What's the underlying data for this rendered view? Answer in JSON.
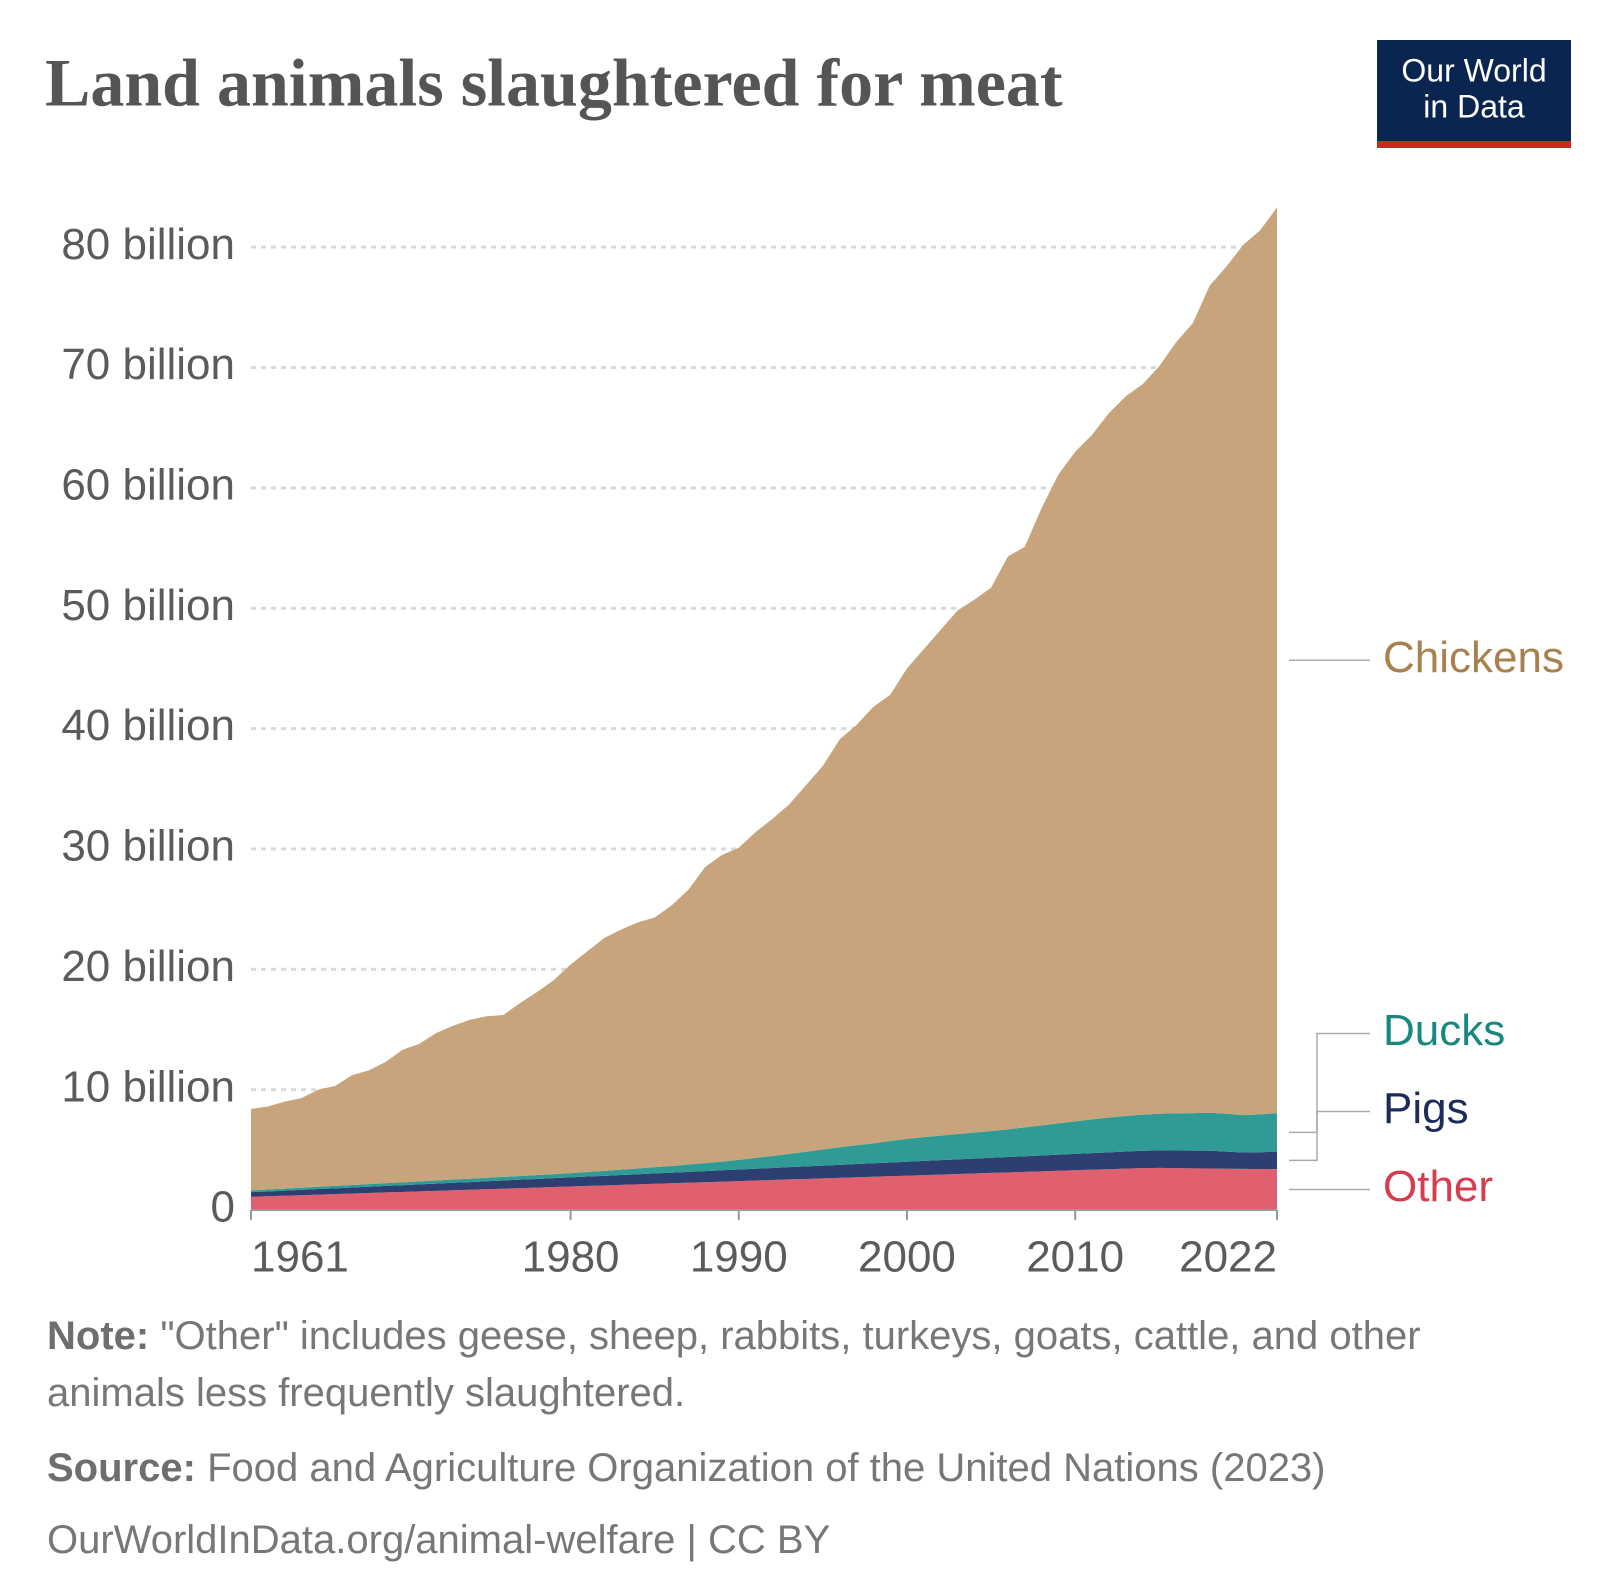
{
  "chart_data": {
    "type": "area",
    "stacked": true,
    "title": "Land animals slaughtered for meat",
    "logo": [
      "Our World",
      "in Data"
    ],
    "x": [
      1961,
      1962,
      1963,
      1964,
      1965,
      1966,
      1967,
      1968,
      1969,
      1970,
      1971,
      1972,
      1973,
      1974,
      1975,
      1976,
      1977,
      1978,
      1979,
      1980,
      1981,
      1982,
      1983,
      1984,
      1985,
      1986,
      1987,
      1988,
      1989,
      1990,
      1991,
      1992,
      1993,
      1994,
      1995,
      1996,
      1997,
      1998,
      1999,
      2000,
      2001,
      2002,
      2003,
      2004,
      2005,
      2006,
      2007,
      2008,
      2009,
      2010,
      2011,
      2012,
      2013,
      2014,
      2015,
      2016,
      2017,
      2018,
      2019,
      2020,
      2021,
      2022
    ],
    "xlim": [
      1961,
      2022
    ],
    "xticks": [
      1961,
      1980,
      1990,
      2000,
      2010,
      2022
    ],
    "ylim": [
      0,
      84
    ],
    "yticks": [
      0,
      {
        "value": 10,
        "label": "10 billion"
      },
      {
        "value": 20,
        "label": "20 billion"
      },
      {
        "value": 30,
        "label": "30 billion"
      },
      {
        "value": 40,
        "label": "40 billion"
      },
      {
        "value": 50,
        "label": "50 billion"
      },
      {
        "value": 60,
        "label": "60 billion"
      },
      {
        "value": 70,
        "label": "70 billion"
      },
      {
        "value": 80,
        "label": "80 billion"
      }
    ],
    "grid": true,
    "series": [
      {
        "name": "Other",
        "color": "#e06070",
        "label_color": "#d73b50",
        "values": [
          1.1,
          1.14,
          1.19,
          1.23,
          1.28,
          1.32,
          1.37,
          1.41,
          1.46,
          1.5,
          1.55,
          1.59,
          1.64,
          1.68,
          1.73,
          1.77,
          1.82,
          1.86,
          1.91,
          1.95,
          2.0,
          2.04,
          2.09,
          2.13,
          2.18,
          2.22,
          2.27,
          2.31,
          2.36,
          2.4,
          2.45,
          2.49,
          2.54,
          2.58,
          2.63,
          2.67,
          2.72,
          2.76,
          2.81,
          2.85,
          2.9,
          2.94,
          2.99,
          3.03,
          3.08,
          3.12,
          3.17,
          3.21,
          3.26,
          3.3,
          3.35,
          3.39,
          3.44,
          3.48,
          3.5,
          3.48,
          3.46,
          3.45,
          3.43,
          3.42,
          3.4,
          3.4
        ]
      },
      {
        "name": "Pigs",
        "color": "#2c3f70",
        "label_color": "#1c2b5a",
        "values": [
          0.38,
          0.4,
          0.42,
          0.44,
          0.46,
          0.48,
          0.5,
          0.52,
          0.54,
          0.56,
          0.58,
          0.6,
          0.62,
          0.64,
          0.66,
          0.68,
          0.7,
          0.72,
          0.74,
          0.76,
          0.78,
          0.8,
          0.82,
          0.84,
          0.86,
          0.88,
          0.9,
          0.92,
          0.94,
          0.96,
          0.98,
          1.0,
          1.02,
          1.04,
          1.06,
          1.08,
          1.1,
          1.12,
          1.14,
          1.16,
          1.18,
          1.2,
          1.22,
          1.24,
          1.26,
          1.28,
          1.3,
          1.32,
          1.34,
          1.36,
          1.38,
          1.4,
          1.42,
          1.44,
          1.45,
          1.46,
          1.47,
          1.48,
          1.42,
          1.36,
          1.4,
          1.45
        ]
      },
      {
        "name": "Ducks",
        "color": "#2f9b94",
        "label_color": "#18877e",
        "values": [
          0.15,
          0.16,
          0.17,
          0.18,
          0.19,
          0.2,
          0.21,
          0.22,
          0.23,
          0.24,
          0.25,
          0.26,
          0.27,
          0.28,
          0.29,
          0.3,
          0.31,
          0.32,
          0.33,
          0.35,
          0.38,
          0.41,
          0.44,
          0.48,
          0.52,
          0.56,
          0.61,
          0.66,
          0.72,
          0.8,
          0.9,
          1.0,
          1.1,
          1.22,
          1.34,
          1.46,
          1.56,
          1.66,
          1.78,
          1.9,
          1.98,
          2.04,
          2.1,
          2.16,
          2.22,
          2.3,
          2.4,
          2.5,
          2.6,
          2.7,
          2.8,
          2.9,
          2.95,
          3.0,
          3.05,
          3.1,
          3.12,
          3.15,
          3.15,
          3.1,
          3.15,
          3.2
        ]
      },
      {
        "name": "Chickens",
        "color": "#c7a47b",
        "label_color": "#a8814f",
        "values": [
          6.77,
          6.9,
          7.22,
          7.45,
          8.07,
          8.3,
          9.12,
          9.45,
          10.07,
          11.0,
          11.42,
          12.25,
          12.77,
          13.2,
          13.42,
          13.45,
          14.37,
          15.2,
          16.12,
          17.34,
          18.34,
          19.35,
          19.95,
          20.45,
          20.74,
          21.64,
          22.82,
          24.61,
          25.48,
          25.94,
          27.07,
          28.01,
          29.04,
          30.46,
          31.87,
          33.89,
          34.92,
          36.26,
          37.07,
          39.09,
          40.54,
          42.02,
          43.49,
          44.27,
          45.14,
          47.6,
          48.23,
          51.27,
          53.9,
          55.64,
          56.87,
          58.51,
          59.79,
          60.68,
          62.1,
          64.06,
          65.65,
          68.72,
          70.4,
          72.32,
          73.45,
          75.25
        ]
      }
    ],
    "note_label": "Note:",
    "note": "\"Other\" includes geese, sheep, rabbits, turkeys, goats, cattle, and other animals less frequently slaughtered.",
    "source_label": "Source:",
    "source": "Food and Agriculture Organization of the United Nations (2023)",
    "footer": "OurWorldInData.org/animal-welfare | CC BY"
  }
}
